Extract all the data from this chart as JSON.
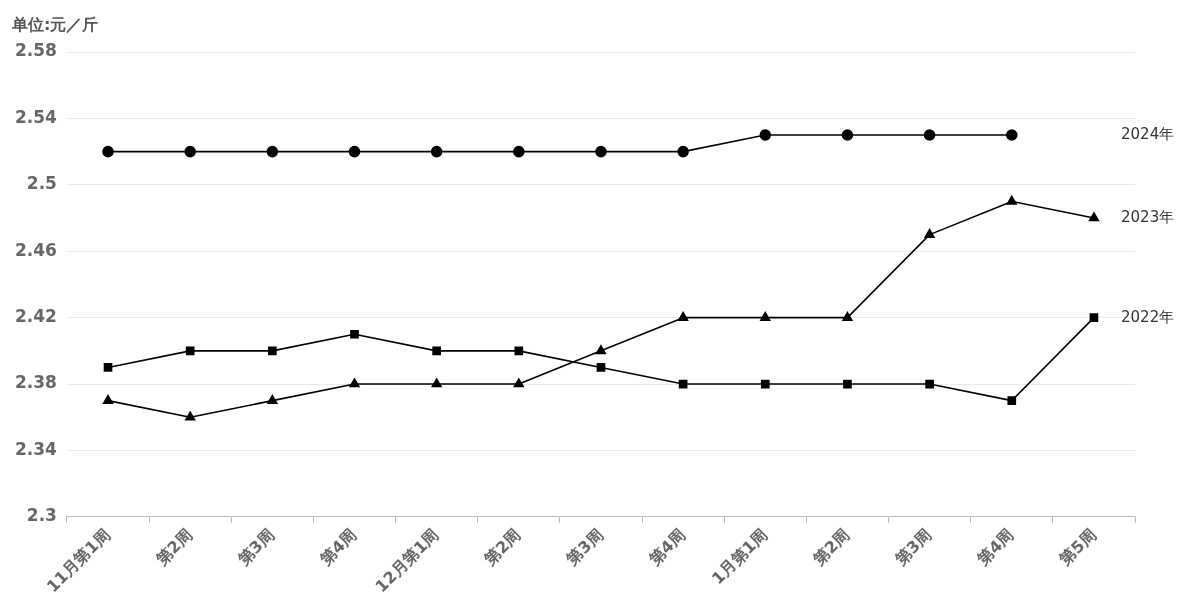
{
  "chart_data": {
    "type": "line",
    "ylabel": "单位:元／斤",
    "categories": [
      "11月第1周",
      "第2周",
      "第3周",
      "第4周",
      "12月第1周",
      "第2周",
      "第3周",
      "第4周",
      "1月第1周",
      "第2周",
      "第3周",
      "第4周",
      "第5周"
    ],
    "series": [
      {
        "name": "2024年",
        "color": "#000000",
        "marker": "circle",
        "values": [
          2.52,
          2.52,
          2.52,
          2.52,
          2.52,
          2.52,
          2.52,
          2.52,
          2.53,
          2.53,
          2.53,
          2.53,
          null
        ]
      },
      {
        "name": "2023年",
        "color": "#000000",
        "marker": "triangle",
        "values": [
          2.37,
          2.36,
          2.37,
          2.38,
          2.38,
          2.38,
          2.4,
          2.42,
          2.42,
          2.42,
          2.47,
          2.49,
          2.48
        ]
      },
      {
        "name": "2022年",
        "color": "#000000",
        "marker": "square",
        "values": [
          2.39,
          2.4,
          2.4,
          2.41,
          2.4,
          2.4,
          2.39,
          2.38,
          2.38,
          2.38,
          2.38,
          2.37,
          2.42
        ]
      }
    ],
    "ylim": [
      2.3,
      2.58
    ],
    "yticks": [
      2.3,
      2.34,
      2.38,
      2.42,
      2.46,
      2.5,
      2.54,
      2.58
    ],
    "grid": "y",
    "legend": false,
    "line_style": "solid"
  }
}
